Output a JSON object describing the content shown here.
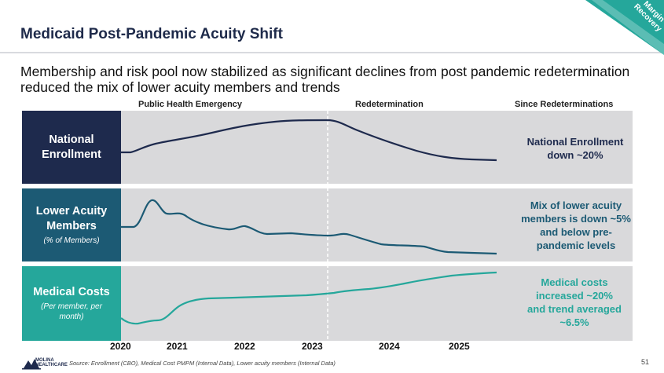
{
  "title": "Medicaid Post-Pandemic Acuity Shift",
  "subtitle": "Membership and risk pool now stabilized as significant declines from post pandemic redetermination reduced the mix of lower acuity members and trends",
  "corner_tag": "Margin Recovery",
  "phases": [
    "Public Health Emergency",
    "Redetermination",
    "Since Redeterminations"
  ],
  "rows": [
    {
      "label": "National Enrollment",
      "sublabel": "",
      "note": "National Enrollment down ~20%",
      "color": "#1e2a4d"
    },
    {
      "label": "Lower Acuity Members",
      "sublabel": "(% of Members)",
      "note": "Mix of lower acuity members is down ~5% and below pre-pandemic levels",
      "color": "#1c5a74"
    },
    {
      "label": "Medical Costs",
      "sublabel": "(Per member, per month)",
      "note": "Medical costs increased ~20% and trend averaged ~6.5%",
      "color": "#25a79b"
    }
  ],
  "years": [
    "2020",
    "2021",
    "2022",
    "2023",
    "2024",
    "2025"
  ],
  "source": "Source: Enrollment (CBO), Medical Cost PMPM (Internal Data), Lower acuity members (Internal Data)",
  "page_number": "51",
  "logo_text": "MOLINA HEALTHCARE",
  "chart_data": {
    "type": "line",
    "x": [
      "2020",
      "2021",
      "2022",
      "2023",
      "2024",
      "2025"
    ],
    "series": [
      {
        "name": "National Enrollment",
        "color": "#1e2a4d"
      },
      {
        "name": "Lower Acuity Members",
        "color": "#1c5a74"
      },
      {
        "name": "Medical Costs",
        "color": "#25a79b"
      }
    ],
    "divider": "2023"
  }
}
